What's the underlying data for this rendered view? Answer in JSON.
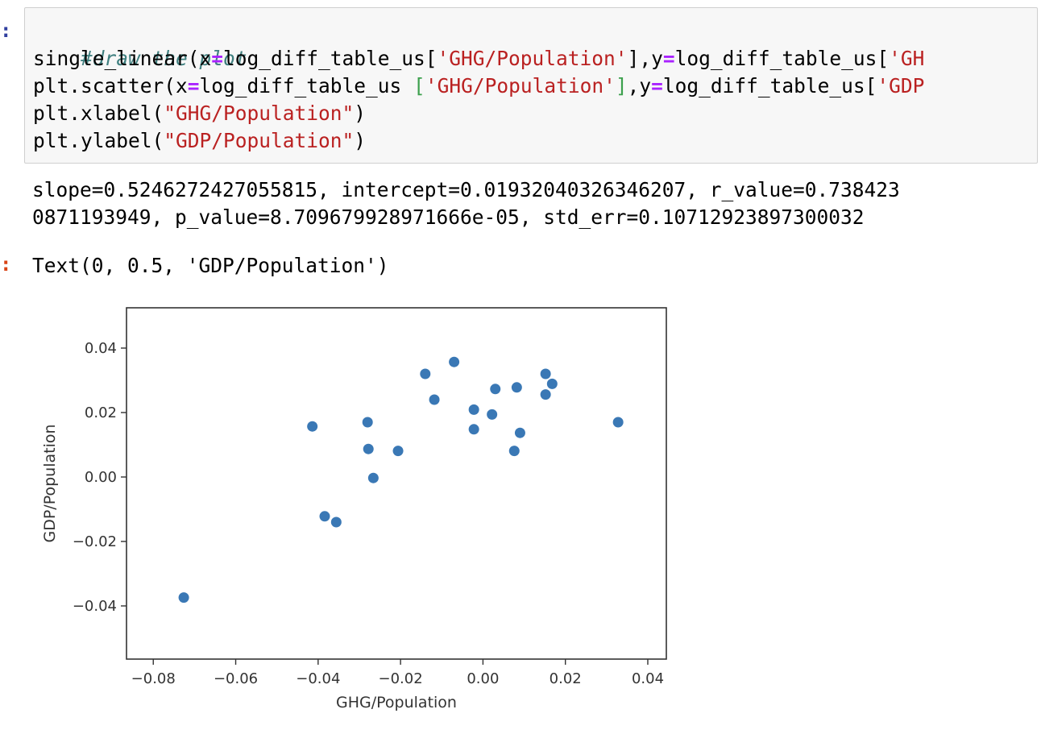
{
  "cells": {
    "input_prompt": ":",
    "code": {
      "comment": "#draw the plot",
      "line1": {
        "fn": "single_linear(x",
        "eq1": "=",
        "mid1": "log_diff_table_us[",
        "str1": "'GHG/Population'",
        "mid2": "],y",
        "eq2": "=",
        "mid3": "log_diff_table_us[",
        "str2": "'GH"
      },
      "line2": {
        "fn": "plt.scatter(x",
        "eq1": "=",
        "mid1": "log_diff_table_us ",
        "bracket_open": "[",
        "str1": "'GHG/Population'",
        "bracket_close": "]",
        "mid2": ",y",
        "eq2": "=",
        "mid3": "log_diff_table_us[",
        "str2": "'GDP"
      },
      "line3": {
        "fn": "plt.xlabel(",
        "str": "\"GHG/Population\"",
        "end": ")"
      },
      "line4": {
        "fn": "plt.ylabel(",
        "str": "\"GDP/Population\"",
        "end": ")"
      }
    },
    "stdout_line1": "slope=0.5246272427055815, intercept=0.01932040326346207, r_value=0.738423",
    "stdout_line2": "0871193949, p_value=8.709679928971666e-05, std_err=0.10712923897300032",
    "output_prompt": ":",
    "result_repr": "Text(0, 0.5, 'GDP/Population')"
  },
  "colors": {
    "point": "#3a78b5",
    "input_prompt": "#303f9f",
    "output_prompt": "#d84315"
  },
  "chart_data": {
    "type": "scatter",
    "xlabel": "GHG/Population",
    "ylabel": "GDP/Population",
    "xlim": [
      -0.0865,
      0.0445
    ],
    "ylim": [
      -0.0565,
      0.0525
    ],
    "xticks": [
      -0.08,
      -0.06,
      -0.04,
      -0.02,
      0.0,
      0.02,
      0.04
    ],
    "xtick_labels": [
      "−0.08",
      "−0.06",
      "−0.04",
      "−0.02",
      "0.00",
      "0.02",
      "0.04"
    ],
    "yticks": [
      -0.04,
      -0.02,
      0.0,
      0.02,
      0.04
    ],
    "ytick_labels": [
      "−0.04",
      "−0.02",
      "0.00",
      "0.02",
      "0.04"
    ],
    "grid": false,
    "points": [
      {
        "x": -0.0726,
        "y": -0.0374
      },
      {
        "x": -0.0414,
        "y": 0.0157
      },
      {
        "x": -0.0384,
        "y": -0.0122
      },
      {
        "x": -0.0356,
        "y": -0.014
      },
      {
        "x": -0.028,
        "y": 0.017
      },
      {
        "x": -0.0278,
        "y": 0.0087
      },
      {
        "x": -0.0266,
        "y": -0.0003
      },
      {
        "x": -0.0206,
        "y": 0.0081
      },
      {
        "x": -0.014,
        "y": 0.032
      },
      {
        "x": -0.0118,
        "y": 0.024
      },
      {
        "x": -0.007,
        "y": 0.0357
      },
      {
        "x": -0.0022,
        "y": 0.0209
      },
      {
        "x": -0.0022,
        "y": 0.0148
      },
      {
        "x": 0.0022,
        "y": 0.0194
      },
      {
        "x": 0.003,
        "y": 0.0273
      },
      {
        "x": 0.0076,
        "y": 0.0081
      },
      {
        "x": 0.0082,
        "y": 0.0278
      },
      {
        "x": 0.009,
        "y": 0.0137
      },
      {
        "x": 0.0152,
        "y": 0.032
      },
      {
        "x": 0.0152,
        "y": 0.0256
      },
      {
        "x": 0.0168,
        "y": 0.0289
      },
      {
        "x": 0.0328,
        "y": 0.017
      }
    ]
  }
}
